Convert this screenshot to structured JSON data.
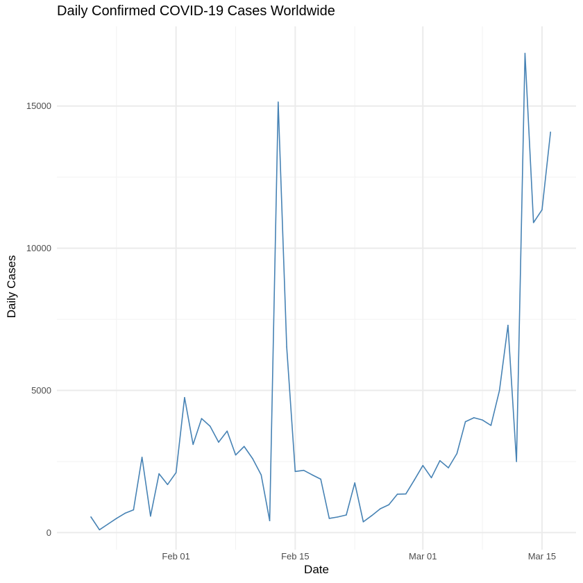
{
  "chart_data": {
    "type": "line",
    "title": "Daily Confirmed COVID-19 Cases Worldwide",
    "xlabel": "Date",
    "ylabel": "Daily Cases",
    "x_type": "date",
    "xlim": [
      "2020-01-18",
      "2020-03-19"
    ],
    "ylim": [
      -600,
      17800
    ],
    "grid": true,
    "line_color": "#4682B4",
    "x_ticks": [
      {
        "date": "2020-02-01",
        "label": "Feb 01"
      },
      {
        "date": "2020-02-15",
        "label": "Feb 15"
      },
      {
        "date": "2020-03-01",
        "label": "Mar 01"
      },
      {
        "date": "2020-03-15",
        "label": "Mar 15"
      }
    ],
    "x_minor_ticks": [
      "2020-01-25",
      "2020-02-08",
      "2020-02-22",
      "2020-03-08"
    ],
    "y_ticks": [
      {
        "value": 0,
        "label": "0"
      },
      {
        "value": 5000,
        "label": "5000"
      },
      {
        "value": 10000,
        "label": "10000"
      },
      {
        "value": 15000,
        "label": "15000"
      }
    ],
    "y_minor_ticks": [
      2500,
      7500,
      12500
    ],
    "series": [
      {
        "x": [
          "2020-01-22",
          "2020-01-23",
          "2020-01-24",
          "2020-01-25",
          "2020-01-26",
          "2020-01-27",
          "2020-01-28",
          "2020-01-29",
          "2020-01-30",
          "2020-01-31",
          "2020-02-01",
          "2020-02-02",
          "2020-02-03",
          "2020-02-04",
          "2020-02-05",
          "2020-02-06",
          "2020-02-07",
          "2020-02-08",
          "2020-02-09",
          "2020-02-10",
          "2020-02-11",
          "2020-02-12",
          "2020-02-13",
          "2020-02-14",
          "2020-02-15",
          "2020-02-16",
          "2020-02-17",
          "2020-02-18",
          "2020-02-19",
          "2020-02-20",
          "2020-02-21",
          "2020-02-22",
          "2020-02-23",
          "2020-02-24",
          "2020-02-25",
          "2020-02-26",
          "2020-02-27",
          "2020-02-28",
          "2020-02-29",
          "2020-03-01",
          "2020-03-02",
          "2020-03-03",
          "2020-03-04",
          "2020-03-05",
          "2020-03-06",
          "2020-03-07",
          "2020-03-08",
          "2020-03-09",
          "2020-03-10",
          "2020-03-11",
          "2020-03-12",
          "2020-03-13",
          "2020-03-14",
          "2020-03-15",
          "2020-03-16"
        ],
        "values": [
          550,
          100,
          300,
          500,
          680,
          800,
          2650,
          580,
          2070,
          1690,
          2110,
          4750,
          3100,
          4010,
          3740,
          3180,
          3570,
          2730,
          3030,
          2600,
          2030,
          420,
          15140,
          6530,
          2150,
          2190,
          2030,
          1880,
          500,
          550,
          620,
          1750,
          380,
          600,
          840,
          980,
          1350,
          1360,
          1850,
          2360,
          1930,
          2530,
          2280,
          2780,
          3900,
          4040,
          3960,
          3770,
          5000,
          7290,
          2500,
          16850,
          10900,
          11350,
          14080
        ]
      }
    ]
  }
}
